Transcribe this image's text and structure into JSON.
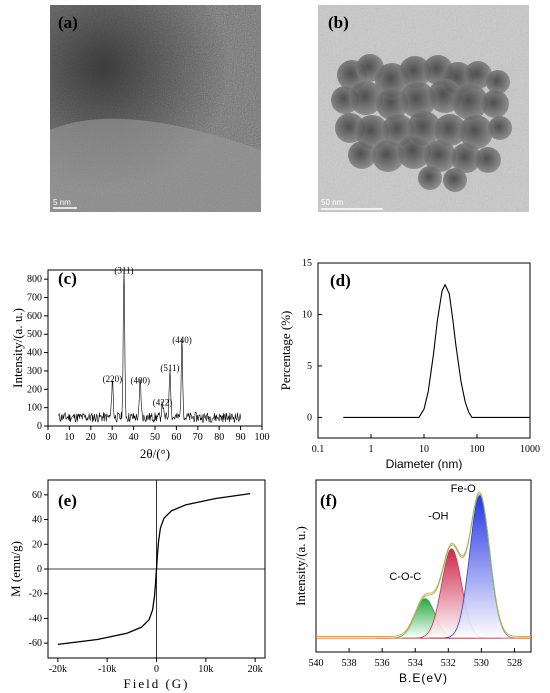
{
  "panels": {
    "a": {
      "label": "(a)",
      "scale_bar": "5 nm"
    },
    "b": {
      "label": "(b)",
      "scale_bar": "50 nm"
    },
    "c": {
      "label": "(c)"
    },
    "d": {
      "label": "(d)"
    },
    "e": {
      "label": "(e)"
    },
    "f": {
      "label": "(f)"
    }
  },
  "chart_data": [
    {
      "panel": "c",
      "type": "line",
      "xlabel": "2θ/(°)",
      "ylabel": "Intensity/(a. u.)",
      "xlim": [
        0,
        100
      ],
      "ylim": [
        0,
        850
      ],
      "xticks": [
        "0",
        "10",
        "20",
        "30",
        "40",
        "50",
        "60",
        "70",
        "80",
        "90",
        "100"
      ],
      "yticks": [
        "0",
        "100",
        "200",
        "300",
        "400",
        "500",
        "600",
        "700",
        "800"
      ],
      "peaks": [
        {
          "x": 30.1,
          "y": 210,
          "label": "(220)"
        },
        {
          "x": 35.5,
          "y": 800,
          "label": "(311)"
        },
        {
          "x": 43.1,
          "y": 200,
          "label": "(400)"
        },
        {
          "x": 53.5,
          "y": 80,
          "label": "(422)"
        },
        {
          "x": 57.0,
          "y": 270,
          "label": "(511)"
        },
        {
          "x": 62.6,
          "y": 420,
          "label": "(440)"
        }
      ]
    },
    {
      "panel": "d",
      "type": "line",
      "xlabel": "Diameter (nm)",
      "ylabel": "Percentage (%)",
      "xscale": "log",
      "xlim": [
        0.1,
        1000
      ],
      "ylim": [
        -2,
        15
      ],
      "xticks": [
        "0.1",
        "1",
        "10",
        "100",
        "1000"
      ],
      "yticks": [
        "0",
        "5",
        "10",
        "15"
      ],
      "series": [
        {
          "x": [
            0.3,
            8,
            10,
            12,
            15,
            18,
            22,
            25,
            30,
            35,
            40,
            50,
            60,
            70,
            80,
            1000
          ],
          "y": [
            0,
            0,
            0.8,
            2.5,
            6.0,
            9.5,
            12.3,
            12.9,
            12.0,
            9.5,
            7.0,
            3.5,
            1.5,
            0.5,
            0,
            0
          ]
        }
      ]
    },
    {
      "panel": "e",
      "type": "line",
      "xlabel": "Field (G)",
      "ylabel": "M (emu/g)",
      "xlim": [
        -22000,
        22000
      ],
      "ylim": [
        -72,
        72
      ],
      "xticks": [
        "-20k",
        "-10k",
        "0",
        "10k",
        "20k"
      ],
      "yticks": [
        "-60",
        "-40",
        "-20",
        "0",
        "20",
        "40",
        "60"
      ],
      "series": [
        {
          "x": [
            -20000,
            -12000,
            -6000,
            -3000,
            -1500,
            -800,
            -400,
            -200,
            0,
            200,
            400,
            800,
            1500,
            3000,
            6000,
            12000,
            19000
          ],
          "y": [
            -61,
            -57,
            -52,
            -47,
            -41,
            -33,
            -22,
            -12,
            0,
            12,
            22,
            33,
            41,
            47,
            52,
            57,
            61
          ]
        }
      ]
    },
    {
      "panel": "f",
      "type": "area",
      "xlabel": "B.E(eV)",
      "ylabel": "Intensity/(a. u.)",
      "xlim": [
        540,
        527
      ],
      "xticks": [
        "540",
        "538",
        "536",
        "534",
        "532",
        "530",
        "528"
      ],
      "components": [
        {
          "name": "C-O-C",
          "center": 533.4,
          "height": 0.23,
          "color": "#1a9a3a"
        },
        {
          "name": "-OH",
          "center": 531.8,
          "height": 0.52,
          "color": "#c8163a"
        },
        {
          "name": "Fe-O",
          "center": 530.1,
          "height": 0.83,
          "color": "#1a2ad6"
        }
      ]
    }
  ]
}
